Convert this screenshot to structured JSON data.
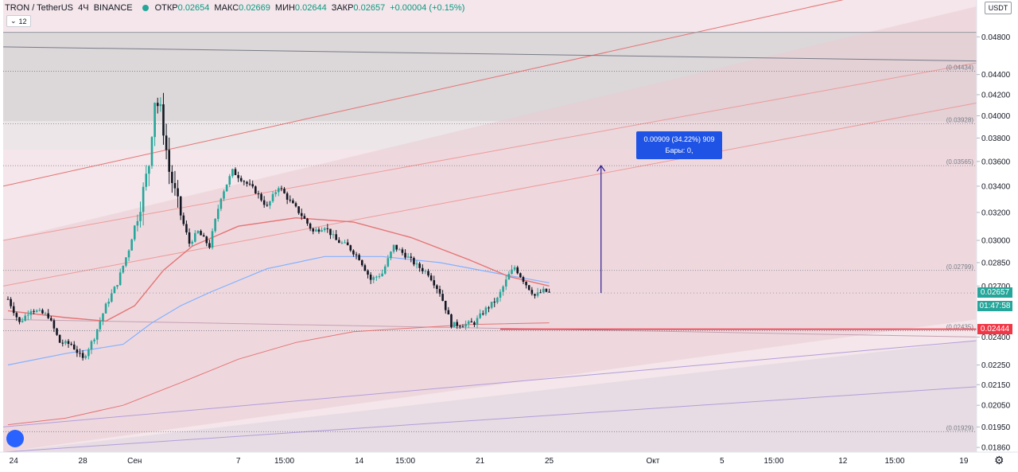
{
  "header": {
    "symbol": "TRON / TetherUS",
    "interval": "4Ч",
    "exchange": "BINANCE",
    "open_label": "ОТКР",
    "open_value": "0.02654",
    "high_label": "МАКС",
    "high_value": "0.02669",
    "low_label": "МИН",
    "low_value": "0.02644",
    "close_label": "ЗАКР",
    "close_value": "0.02657",
    "change": "+0.00004 (+0.15%)"
  },
  "indicator_button": {
    "label": "12",
    "icon": "chevron-down-icon"
  },
  "currency_button": "USDT",
  "measure_box": {
    "line1": "0.00909 (34.22%) 909",
    "line2": "Бары: 0,"
  },
  "current_price_tag": {
    "price": "0.02657",
    "countdown": "01:47:58",
    "color": "#26a69a"
  },
  "support_price_tag": {
    "price": "0.02444",
    "color": "#f23645"
  },
  "colors": {
    "up": "#26a69a",
    "down": "#131722",
    "support_line": "#f23645",
    "ma_blue": "#82b1ff",
    "ma_red": "#e57373",
    "ma_green": "#6b8e5a",
    "arrow": "#311b92",
    "zone": "#e8c7cf"
  },
  "chart_data": {
    "type": "candlestick",
    "symbol": "TRON / TetherUS",
    "interval": "4Ч",
    "y_axis": {
      "ticks": [
        "0.04800",
        "0.04400",
        "0.04200",
        "0.04000",
        "0.03800",
        "0.03600",
        "0.03400",
        "0.03200",
        "0.03000",
        "0.02850",
        "0.02700",
        "0.02400",
        "0.02250",
        "0.02150",
        "0.02050",
        "0.01950",
        "0.01860"
      ],
      "ylim": [
        0.0184,
        0.0515
      ],
      "scale": "log"
    },
    "x_axis": {
      "ticks": [
        {
          "label": "24",
          "t": 2
        },
        {
          "label": "28",
          "t": 26
        },
        {
          "label": "Сен",
          "t": 44
        },
        {
          "label": "7",
          "t": 80
        },
        {
          "label": "15:00",
          "t": 96
        },
        {
          "label": "14",
          "t": 122
        },
        {
          "label": "15:00",
          "t": 138
        },
        {
          "label": "21",
          "t": 164
        },
        {
          "label": "25",
          "t": 188
        },
        {
          "label": "Окт",
          "t": 224
        },
        {
          "label": "5",
          "t": 248
        },
        {
          "label": "15:00",
          "t": 266
        },
        {
          "label": "12",
          "t": 290
        },
        {
          "label": "15:00",
          "t": 308
        },
        {
          "label": "19",
          "t": 332
        }
      ]
    },
    "levels": [
      {
        "label": "(0.04434)",
        "value": 0.04434
      },
      {
        "label": "(0.03928)",
        "value": 0.03928
      },
      {
        "label": "(0.03565)",
        "value": 0.03565
      },
      {
        "label": "(0.02799)",
        "value": 0.02799
      },
      {
        "label": "(0.02435)",
        "value": 0.02435
      },
      {
        "label": "(0.01929)",
        "value": 0.01929
      }
    ],
    "support_level": 0.02444,
    "last_price": 0.02657,
    "anchors": [
      {
        "t": 0,
        "p": 0.0262
      },
      {
        "t": 4,
        "p": 0.0248
      },
      {
        "t": 8,
        "p": 0.0256
      },
      {
        "t": 14,
        "p": 0.0252
      },
      {
        "t": 18,
        "p": 0.0237
      },
      {
        "t": 22,
        "p": 0.0236
      },
      {
        "t": 26,
        "p": 0.0228
      },
      {
        "t": 30,
        "p": 0.024
      },
      {
        "t": 34,
        "p": 0.0258
      },
      {
        "t": 38,
        "p": 0.0272
      },
      {
        "t": 42,
        "p": 0.0294
      },
      {
        "t": 46,
        "p": 0.0326
      },
      {
        "t": 49,
        "p": 0.0358
      },
      {
        "t": 51,
        "p": 0.0415
      },
      {
        "t": 53,
        "p": 0.0405
      },
      {
        "t": 56,
        "p": 0.0352
      },
      {
        "t": 60,
        "p": 0.0318
      },
      {
        "t": 63,
        "p": 0.0298
      },
      {
        "t": 66,
        "p": 0.0306
      },
      {
        "t": 70,
        "p": 0.0296
      },
      {
        "t": 74,
        "p": 0.0332
      },
      {
        "t": 78,
        "p": 0.0352
      },
      {
        "t": 82,
        "p": 0.0344
      },
      {
        "t": 86,
        "p": 0.0336
      },
      {
        "t": 90,
        "p": 0.0324
      },
      {
        "t": 94,
        "p": 0.034
      },
      {
        "t": 98,
        "p": 0.0328
      },
      {
        "t": 102,
        "p": 0.0318
      },
      {
        "t": 106,
        "p": 0.0306
      },
      {
        "t": 110,
        "p": 0.031
      },
      {
        "t": 114,
        "p": 0.03
      },
      {
        "t": 118,
        "p": 0.0296
      },
      {
        "t": 122,
        "p": 0.0288
      },
      {
        "t": 126,
        "p": 0.0274
      },
      {
        "t": 130,
        "p": 0.0278
      },
      {
        "t": 134,
        "p": 0.0296
      },
      {
        "t": 138,
        "p": 0.029
      },
      {
        "t": 142,
        "p": 0.0283
      },
      {
        "t": 146,
        "p": 0.0278
      },
      {
        "t": 150,
        "p": 0.0266
      },
      {
        "t": 154,
        "p": 0.0247
      },
      {
        "t": 158,
        "p": 0.0247
      },
      {
        "t": 162,
        "p": 0.0248
      },
      {
        "t": 166,
        "p": 0.0256
      },
      {
        "t": 170,
        "p": 0.0262
      },
      {
        "t": 174,
        "p": 0.0277
      },
      {
        "t": 176,
        "p": 0.0282
      },
      {
        "t": 180,
        "p": 0.0271
      },
      {
        "t": 183,
        "p": 0.0264
      },
      {
        "t": 186,
        "p": 0.0267
      },
      {
        "t": 188,
        "p": 0.0266
      }
    ],
    "ma_blue": [
      {
        "t": 0,
        "p": 0.0225
      },
      {
        "t": 20,
        "p": 0.0231
      },
      {
        "t": 40,
        "p": 0.0236
      },
      {
        "t": 50,
        "p": 0.0248
      },
      {
        "t": 60,
        "p": 0.0258
      },
      {
        "t": 70,
        "p": 0.0266
      },
      {
        "t": 90,
        "p": 0.0281
      },
      {
        "t": 110,
        "p": 0.0289
      },
      {
        "t": 130,
        "p": 0.0289
      },
      {
        "t": 150,
        "p": 0.0285
      },
      {
        "t": 170,
        "p": 0.0278
      },
      {
        "t": 188,
        "p": 0.0272
      }
    ],
    "ma_red": [
      {
        "t": 0,
        "p": 0.0255
      },
      {
        "t": 20,
        "p": 0.0251
      },
      {
        "t": 34,
        "p": 0.0249
      },
      {
        "t": 44,
        "p": 0.0258
      },
      {
        "t": 54,
        "p": 0.028
      },
      {
        "t": 64,
        "p": 0.0296
      },
      {
        "t": 80,
        "p": 0.031
      },
      {
        "t": 100,
        "p": 0.0316
      },
      {
        "t": 120,
        "p": 0.0313
      },
      {
        "t": 140,
        "p": 0.0302
      },
      {
        "t": 160,
        "p": 0.0287
      },
      {
        "t": 174,
        "p": 0.0276
      },
      {
        "t": 188,
        "p": 0.027
      }
    ],
    "ma_long": [
      {
        "t": 0,
        "p": 0.0196
      },
      {
        "t": 20,
        "p": 0.0199
      },
      {
        "t": 40,
        "p": 0.0205
      },
      {
        "t": 60,
        "p": 0.0216
      },
      {
        "t": 80,
        "p": 0.0228
      },
      {
        "t": 100,
        "p": 0.0237
      },
      {
        "t": 120,
        "p": 0.0243
      },
      {
        "t": 140,
        "p": 0.0245
      },
      {
        "t": 160,
        "p": 0.0247
      },
      {
        "t": 188,
        "p": 0.0248
      }
    ],
    "measure_from": {
      "t": 206,
      "p": 0.02657
    },
    "measure_to": {
      "t": 206,
      "p": 0.03565
    }
  }
}
